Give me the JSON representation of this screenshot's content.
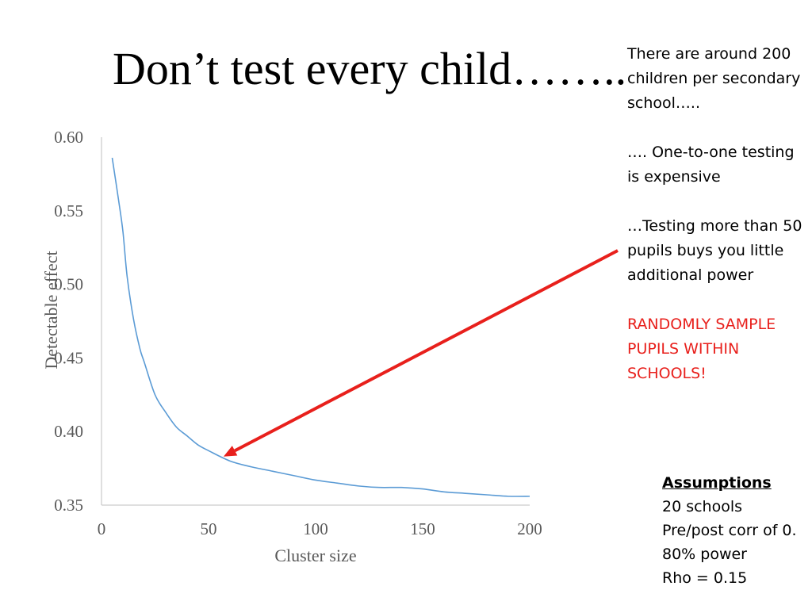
{
  "slide": {
    "title": "Don’t test every child……..",
    "notes": [
      "There are around 200 children per secondary school…..",
      "…. One-to-one testing is expensive",
      "…Testing more than 50 pupils buys you little additional power"
    ],
    "emphasis": "RANDOMLY SAMPLE PUPILS WITHIN SCHOOLS!",
    "assumptions": {
      "heading": "Assumptions",
      "items": [
        "20 schools",
        "Pre/post corr of 0.",
        "80% power",
        "Rho = 0.15"
      ]
    }
  },
  "colors": {
    "line": "#5b9bd5",
    "arrow": "#e8201c",
    "axis": "#bfbfbf",
    "emphasis": "#e8201c"
  },
  "chart_data": {
    "type": "line",
    "title": "",
    "xlabel": "Cluster size",
    "ylabel": "Detectable effect",
    "xlim": [
      0,
      200
    ],
    "ylim": [
      0.35,
      0.6
    ],
    "xticks": [
      "0",
      "50",
      "100",
      "150",
      "200"
    ],
    "yticks": [
      "0.60",
      "0.55",
      "0.50",
      "0.45",
      "0.40",
      "0.35"
    ],
    "grid": false,
    "series": [
      {
        "x": [
          5,
          8,
          10,
          12,
          15,
          18,
          20,
          25,
          30,
          35,
          40,
          45,
          50,
          60,
          70,
          80,
          90,
          100,
          110,
          120,
          130,
          140,
          150,
          160,
          170,
          180,
          190,
          200
        ],
        "values": [
          0.586,
          0.557,
          0.536,
          0.505,
          0.476,
          0.456,
          0.447,
          0.425,
          0.413,
          0.403,
          0.397,
          0.391,
          0.387,
          0.38,
          0.376,
          0.373,
          0.37,
          0.367,
          0.365,
          0.363,
          0.362,
          0.362,
          0.361,
          0.359,
          0.358,
          0.357,
          0.356,
          0.356
        ]
      }
    ],
    "annotation": {
      "type": "arrow",
      "target_x": 57,
      "target_y": 0.383
    }
  }
}
